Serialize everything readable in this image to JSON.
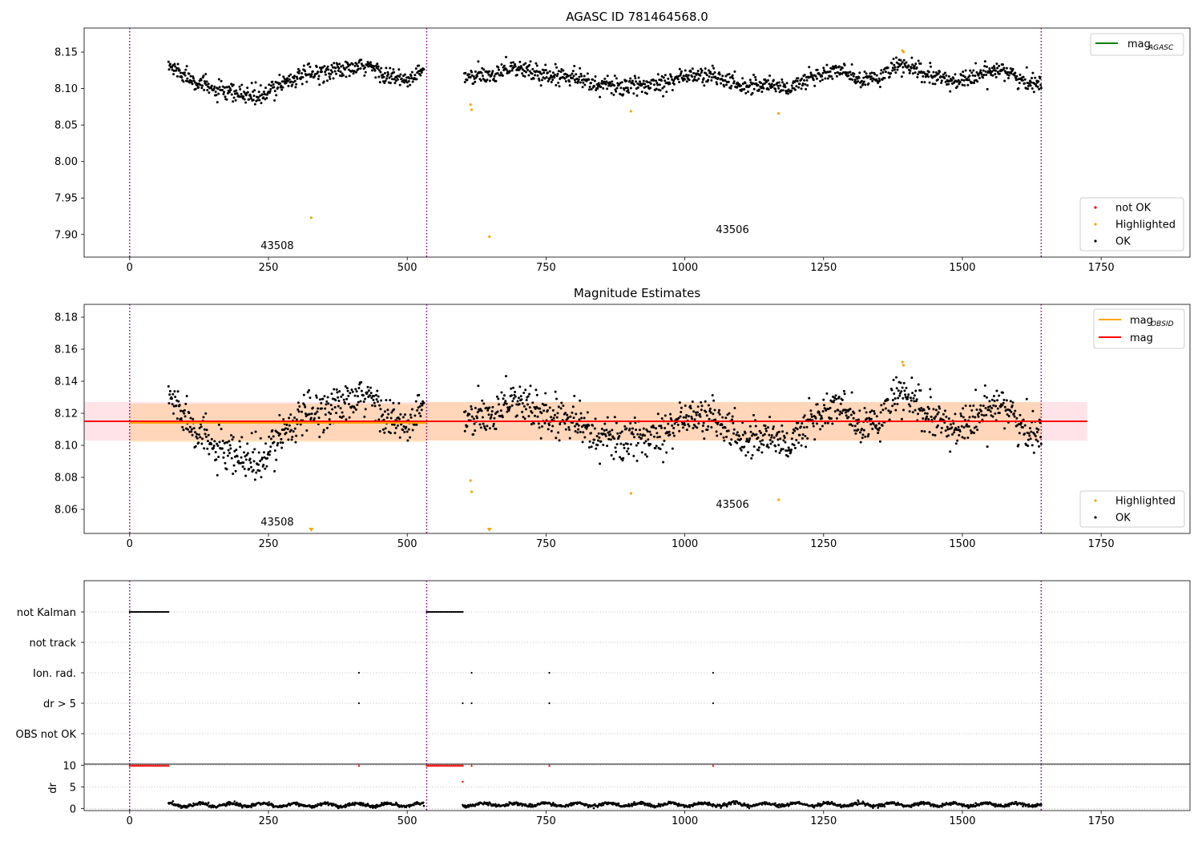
{
  "chart_data": [
    {
      "type": "scatter",
      "title": "AGASC ID 781464568.0",
      "xlim": [
        -82,
        1910
      ],
      "ylim": [
        7.869,
        8.183
      ],
      "xticks": [
        0,
        250,
        500,
        750,
        1000,
        1250,
        1500,
        1750
      ],
      "yticks": [
        7.9,
        7.95,
        8.0,
        8.05,
        8.1,
        8.15
      ],
      "ytick_labels": [
        "7.90",
        "7.95",
        "8.00",
        "8.05",
        "8.10",
        "8.15"
      ],
      "obs_boundaries": [
        0,
        535,
        1642
      ],
      "annotations": [
        {
          "text": "43508",
          "x": 236,
          "y": 7.88
        },
        {
          "text": "43506",
          "x": 1056,
          "y": 7.902
        }
      ],
      "legend_lines": [
        {
          "name": "mag",
          "sub": "AGASC",
          "color": "#008000"
        }
      ],
      "legend_points": [
        {
          "name": "not OK",
          "color": "#ff0000"
        },
        {
          "name": "Highlighted",
          "color": "#ffa500"
        },
        {
          "name": "OK",
          "color": "#000000"
        }
      ],
      "series": [
        {
          "name": "OK",
          "color": "#000000",
          "segments": [
            {
              "x_start": 70,
              "x_end": 530,
              "knots": [
                [
                  70,
                  8.131
                ],
                [
                  110,
                  8.115
                ],
                [
                  150,
                  8.098
                ],
                [
                  180,
                  8.093
                ],
                [
                  205,
                  8.092
                ],
                [
                  240,
                  8.088
                ],
                [
                  270,
                  8.108
                ],
                [
                  300,
                  8.115
                ],
                [
                  330,
                  8.12
                ],
                [
                  360,
                  8.125
                ],
                [
                  400,
                  8.126
                ],
                [
                  430,
                  8.131
                ],
                [
                  470,
                  8.116
                ],
                [
                  500,
                  8.11
                ],
                [
                  530,
                  8.126
                ]
              ]
            },
            {
              "x_start": 603,
              "x_end": 1642,
              "knots": [
                [
                  603,
                  8.115
                ],
                [
                  650,
                  8.118
                ],
                [
                  680,
                  8.13
                ],
                [
                  720,
                  8.124
                ],
                [
                  760,
                  8.117
                ],
                [
                  800,
                  8.12
                ],
                [
                  830,
                  8.106
                ],
                [
                  870,
                  8.104
                ],
                [
                  910,
                  8.102
                ],
                [
                  950,
                  8.108
                ],
                [
                  1000,
                  8.117
                ],
                [
                  1050,
                  8.118
                ],
                [
                  1100,
                  8.104
                ],
                [
                  1150,
                  8.106
                ],
                [
                  1190,
                  8.1
                ],
                [
                  1230,
                  8.117
                ],
                [
                  1280,
                  8.125
                ],
                [
                  1320,
                  8.109
                ],
                [
                  1360,
                  8.12
                ],
                [
                  1390,
                  8.133
                ],
                [
                  1430,
                  8.12
                ],
                [
                  1480,
                  8.11
                ],
                [
                  1530,
                  8.117
                ],
                [
                  1570,
                  8.13
                ],
                [
                  1610,
                  8.108
                ],
                [
                  1642,
                  8.109
                ]
              ]
            }
          ]
        },
        {
          "name": "Highlighted",
          "color": "#ffa500",
          "points": [
            [
              614,
              8.078
            ],
            [
              616,
              8.071
            ],
            [
              327,
              7.923
            ],
            [
              648,
              7.897
            ],
            [
              903,
              8.069
            ],
            [
              1169,
              8.066
            ],
            [
              1392,
              8.152
            ],
            [
              1394,
              8.15
            ]
          ]
        }
      ]
    },
    {
      "type": "scatter",
      "title": "Magnitude Estimates",
      "xlim": [
        -82,
        1910
      ],
      "ylim": [
        8.045,
        8.188
      ],
      "xticks": [
        0,
        250,
        500,
        750,
        1000,
        1250,
        1500,
        1750
      ],
      "yticks": [
        8.06,
        8.08,
        8.1,
        8.12,
        8.14,
        8.16,
        8.18
      ],
      "ytick_labels": [
        "8.06",
        "8.08",
        "8.10",
        "8.12",
        "8.14",
        "8.16",
        "8.18"
      ],
      "obs_boundaries": [
        0,
        535,
        1642
      ],
      "annotations": [
        {
          "text": "43508",
          "x": 236,
          "y": 8.05
        },
        {
          "text": "43506",
          "x": 1056,
          "y": 8.061
        }
      ],
      "legend_lines": [
        {
          "name": "mag",
          "sub": "OBSID",
          "color": "#ffa500"
        },
        {
          "name": "mag",
          "sub": "",
          "color": "#ff0000"
        }
      ],
      "legend_points": [
        {
          "name": "Highlighted",
          "color": "#ffa500"
        },
        {
          "name": "OK",
          "color": "#000000"
        }
      ],
      "mag": {
        "value": 8.115,
        "band": [
          8.103,
          8.127
        ],
        "x_range": [
          -82,
          1725
        ]
      },
      "mag_obsid": [
        {
          "x": [
            0,
            535
          ],
          "value": 8.114,
          "band": [
            8.102,
            8.126
          ]
        },
        {
          "x": [
            535,
            1642
          ],
          "value": 8.115,
          "band": [
            8.103,
            8.127
          ]
        }
      ],
      "series": [
        {
          "name": "OK",
          "color": "#000000",
          "segments": [
            {
              "x_start": 70,
              "x_end": 530,
              "knots": [
                [
                  70,
                  8.131
                ],
                [
                  110,
                  8.115
                ],
                [
                  150,
                  8.098
                ],
                [
                  180,
                  8.093
                ],
                [
                  205,
                  8.092
                ],
                [
                  240,
                  8.088
                ],
                [
                  270,
                  8.108
                ],
                [
                  300,
                  8.115
                ],
                [
                  330,
                  8.12
                ],
                [
                  360,
                  8.125
                ],
                [
                  400,
                  8.126
                ],
                [
                  430,
                  8.131
                ],
                [
                  470,
                  8.116
                ],
                [
                  500,
                  8.11
                ],
                [
                  530,
                  8.126
                ]
              ]
            },
            {
              "x_start": 603,
              "x_end": 1642,
              "knots": [
                [
                  603,
                  8.115
                ],
                [
                  650,
                  8.118
                ],
                [
                  680,
                  8.13
                ],
                [
                  720,
                  8.124
                ],
                [
                  760,
                  8.117
                ],
                [
                  800,
                  8.12
                ],
                [
                  830,
                  8.106
                ],
                [
                  870,
                  8.104
                ],
                [
                  910,
                  8.102
                ],
                [
                  950,
                  8.108
                ],
                [
                  1000,
                  8.117
                ],
                [
                  1050,
                  8.118
                ],
                [
                  1100,
                  8.104
                ],
                [
                  1150,
                  8.106
                ],
                [
                  1190,
                  8.1
                ],
                [
                  1230,
                  8.117
                ],
                [
                  1280,
                  8.125
                ],
                [
                  1320,
                  8.109
                ],
                [
                  1360,
                  8.12
                ],
                [
                  1390,
                  8.133
                ],
                [
                  1430,
                  8.12
                ],
                [
                  1480,
                  8.11
                ],
                [
                  1530,
                  8.117
                ],
                [
                  1570,
                  8.13
                ],
                [
                  1610,
                  8.108
                ],
                [
                  1642,
                  8.109
                ]
              ]
            }
          ]
        },
        {
          "name": "Highlighted",
          "color": "#ffa500",
          "points": [
            [
              614,
              8.078
            ],
            [
              616,
              8.071
            ],
            [
              903,
              8.07
            ],
            [
              1169,
              8.066
            ],
            [
              1392,
              8.152
            ],
            [
              1394,
              8.15
            ]
          ]
        },
        {
          "name": "Highlighted (below range)",
          "color": "#ffa500",
          "points": [
            [
              327,
              8.046
            ],
            [
              648,
              8.046
            ]
          ]
        }
      ]
    },
    {
      "type": "scatter",
      "title": "",
      "xlim": [
        -82,
        1910
      ],
      "categories": [
        "not Kalman",
        "not track",
        "Ion. rad.",
        "dr > 5",
        "OBS not OK"
      ],
      "obs_boundaries": [
        0,
        535,
        1642
      ],
      "flags": {
        "not Kalman": {
          "ranges": [
            [
              0,
              70
            ],
            [
              535,
              600
            ]
          ],
          "points": []
        },
        "not track": {
          "ranges": [],
          "points": []
        },
        "Ion. rad.": {
          "ranges": [],
          "points": [
            413,
            616,
            756,
            1051
          ]
        },
        "dr > 5": {
          "ranges": [],
          "points": [
            413,
            600,
            616,
            756,
            1051
          ]
        },
        "OBS not OK": {
          "ranges": [],
          "points": []
        }
      }
    },
    {
      "type": "scatter",
      "title": "",
      "ylabel": "dr",
      "xlim": [
        -82,
        1910
      ],
      "ylim": [
        -0.5,
        10.3
      ],
      "xticks": [
        0,
        250,
        500,
        750,
        1000,
        1250,
        1500,
        1750
      ],
      "yticks": [
        0,
        5,
        10
      ],
      "obs_boundaries": [
        0,
        535,
        1642
      ],
      "series": [
        {
          "name": "dr",
          "color": "#000000",
          "segments": [
            {
              "x_start": 70,
              "x_end": 530,
              "value": 0.8
            },
            {
              "x_start": 600,
              "x_end": 1642,
              "value": 0.9
            }
          ]
        },
        {
          "name": "dr > 5 (clipped)",
          "color": "#ff0000",
          "ranges": [
            [
              0,
              70
            ],
            [
              535,
              600
            ]
          ],
          "points": [
            413,
            616,
            756,
            1051
          ],
          "value": 10
        },
        {
          "name": "dr > 5",
          "color": "#ff0000",
          "points": [
            [
              600,
              6.2
            ]
          ]
        }
      ]
    }
  ]
}
